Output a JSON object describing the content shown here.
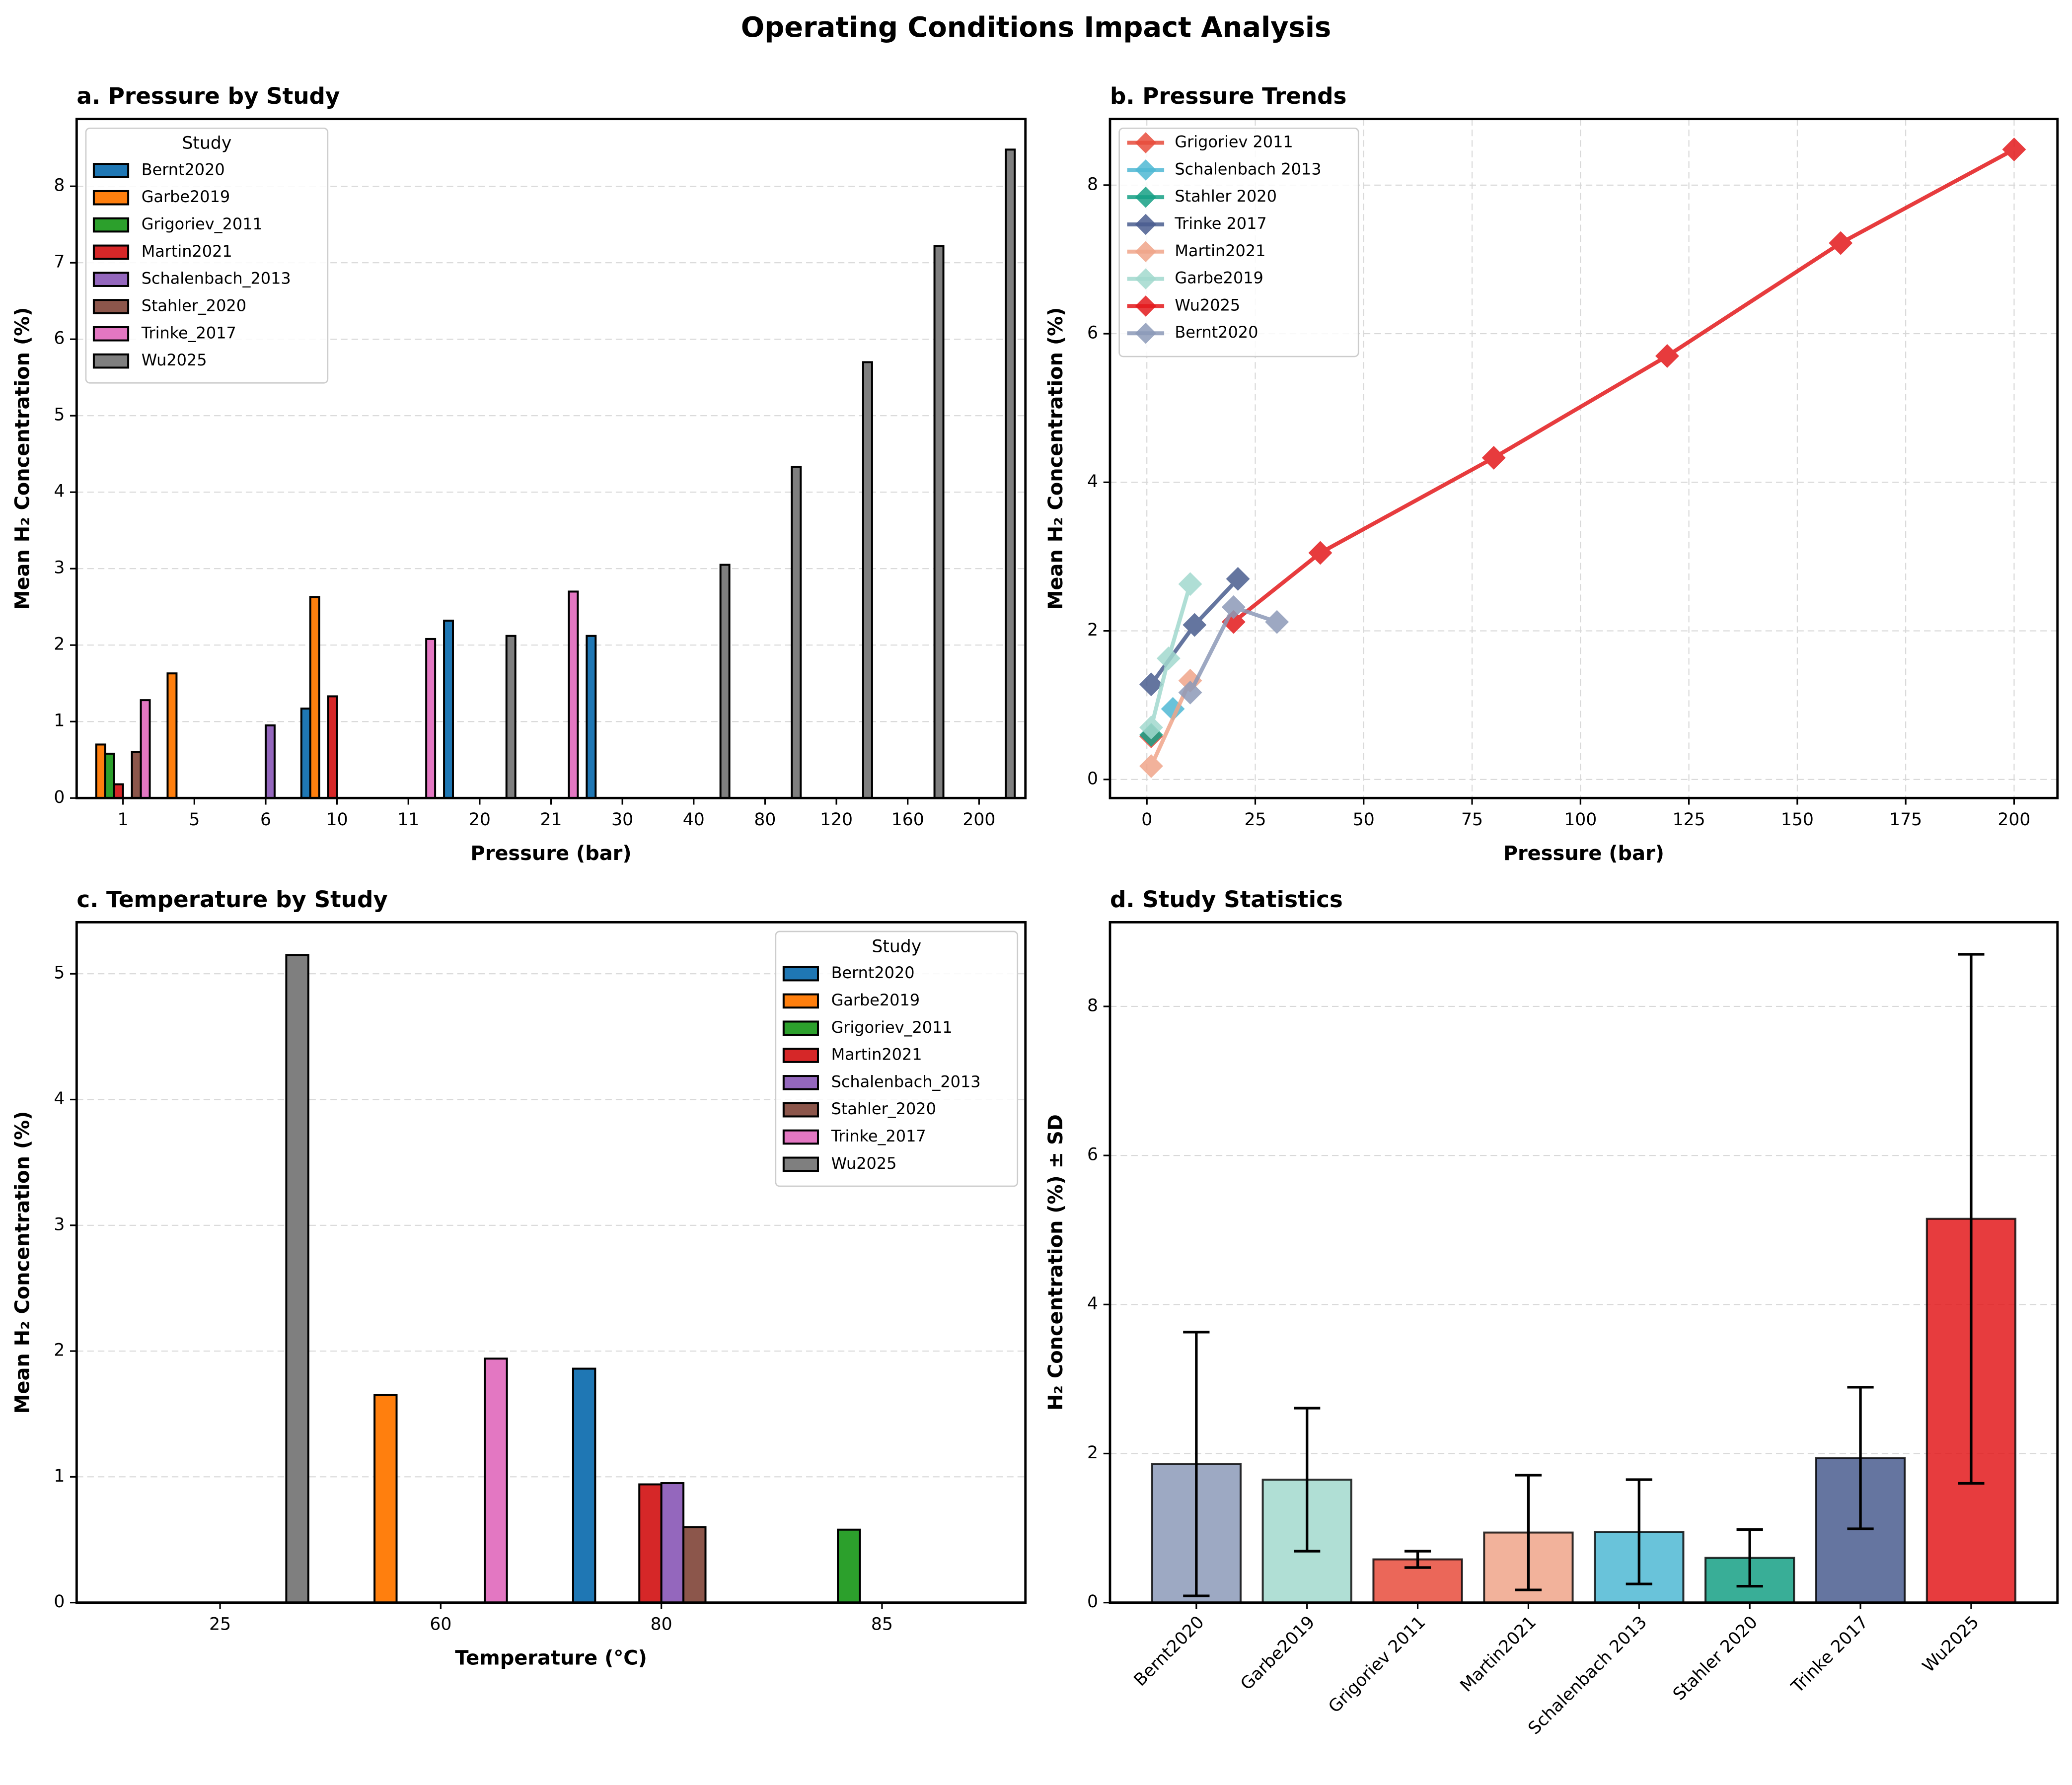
{
  "title": "Operating Conditions Impact Analysis",
  "chart_data": [
    {
      "type": "bar",
      "title": "a. Pressure by Study",
      "xlabel": "Pressure (bar)",
      "ylabel": "Mean H₂ Concentration (%)",
      "categories": [
        1,
        5,
        6,
        10,
        11,
        20,
        21,
        30,
        40,
        80,
        120,
        160,
        200
      ],
      "series": [
        {
          "name": "Bernt2020",
          "color": "#1f77b4",
          "values": [
            null,
            null,
            null,
            1.17,
            null,
            2.32,
            null,
            2.12,
            null,
            null,
            null,
            null,
            null
          ]
        },
        {
          "name": "Garbe2019",
          "color": "#ff7f0e",
          "values": [
            0.7,
            1.63,
            null,
            2.63,
            null,
            null,
            null,
            null,
            null,
            null,
            null,
            null,
            null
          ]
        },
        {
          "name": "Grigoriev_2011",
          "color": "#2ca02c",
          "values": [
            0.58,
            null,
            null,
            null,
            null,
            null,
            null,
            null,
            null,
            null,
            null,
            null,
            null
          ]
        },
        {
          "name": "Martin2021",
          "color": "#d62728",
          "values": [
            0.18,
            null,
            null,
            1.33,
            null,
            null,
            null,
            null,
            null,
            null,
            null,
            null,
            null
          ]
        },
        {
          "name": "Schalenbach_2013",
          "color": "#9467bd",
          "values": [
            null,
            null,
            0.95,
            null,
            null,
            null,
            null,
            null,
            null,
            null,
            null,
            null,
            null
          ]
        },
        {
          "name": "Stahler_2020",
          "color": "#8c564b",
          "values": [
            0.6,
            null,
            null,
            null,
            null,
            null,
            null,
            null,
            null,
            null,
            null,
            null,
            null
          ]
        },
        {
          "name": "Trinke_2017",
          "color": "#e377c2",
          "values": [
            1.28,
            null,
            null,
            null,
            2.08,
            null,
            2.7,
            null,
            null,
            null,
            null,
            null,
            null
          ]
        },
        {
          "name": "Wu2025",
          "color": "#7f7f7f",
          "values": [
            null,
            null,
            null,
            null,
            null,
            2.12,
            null,
            null,
            3.05,
            4.33,
            5.7,
            7.22,
            8.48
          ]
        }
      ],
      "ylim": [
        0,
        8.88
      ],
      "yticks": [
        0,
        1,
        2,
        3,
        4,
        5,
        6,
        7,
        8
      ],
      "grid": "y",
      "legend": "upper left",
      "legend_title": "Study"
    },
    {
      "type": "line",
      "title": "b. Pressure Trends",
      "xlabel": "Pressure (bar)",
      "ylabel": "Mean H₂ Concentration (%)",
      "series": [
        {
          "name": "Grigoriev 2011",
          "color": "#e74c3c",
          "x": [
            1
          ],
          "values": [
            0.58
          ]
        },
        {
          "name": "Schalenbach 2013",
          "color": "#4fb8d4",
          "x": [
            6
          ],
          "values": [
            0.95
          ]
        },
        {
          "name": "Stahler 2020",
          "color": "#16a085",
          "x": [
            1
          ],
          "values": [
            0.6
          ]
        },
        {
          "name": "Trinke 2017",
          "color": "#4a5d8f",
          "x": [
            1,
            11,
            21
          ],
          "values": [
            1.28,
            2.08,
            2.7
          ]
        },
        {
          "name": "Martin2021",
          "color": "#f0a58a",
          "x": [
            1,
            10
          ],
          "values": [
            0.18,
            1.33
          ]
        },
        {
          "name": "Garbe2019",
          "color": "#a2d9ce",
          "x": [
            1,
            5,
            10
          ],
          "values": [
            0.7,
            1.63,
            2.63
          ]
        },
        {
          "name": "Wu2025",
          "color": "#e31a1c",
          "x": [
            20,
            40,
            80,
            120,
            160,
            200
          ],
          "values": [
            2.12,
            3.05,
            4.33,
            5.7,
            7.22,
            8.48
          ]
        },
        {
          "name": "Bernt2020",
          "color": "#8c9ab8",
          "x": [
            10,
            20,
            30
          ],
          "values": [
            1.17,
            2.32,
            2.12
          ]
        }
      ],
      "xlim": [
        -8.5,
        210
      ],
      "xticks": [
        0,
        25,
        50,
        75,
        100,
        125,
        150,
        175,
        200
      ],
      "ylim": [
        -0.25,
        8.89
      ],
      "yticks": [
        0,
        2,
        4,
        6,
        8
      ],
      "grid": "both",
      "legend": "upper left"
    },
    {
      "type": "bar",
      "title": "c. Temperature by Study",
      "xlabel": "Temperature (°C)",
      "ylabel": "Mean H₂ Concentration (%)",
      "categories": [
        25,
        60,
        80,
        85
      ],
      "series": [
        {
          "name": "Bernt2020",
          "color": "#1f77b4",
          "values": [
            null,
            null,
            1.86,
            null
          ]
        },
        {
          "name": "Garbe2019",
          "color": "#ff7f0e",
          "values": [
            null,
            1.65,
            null,
            null
          ]
        },
        {
          "name": "Grigoriev_2011",
          "color": "#2ca02c",
          "values": [
            null,
            null,
            null,
            0.58
          ]
        },
        {
          "name": "Martin2021",
          "color": "#d62728",
          "values": [
            null,
            null,
            0.94,
            null
          ]
        },
        {
          "name": "Schalenbach_2013",
          "color": "#9467bd",
          "values": [
            null,
            null,
            0.95,
            null
          ]
        },
        {
          "name": "Stahler_2020",
          "color": "#8c564b",
          "values": [
            null,
            null,
            0.6,
            null
          ]
        },
        {
          "name": "Trinke_2017",
          "color": "#e377c2",
          "values": [
            null,
            1.94,
            null,
            null
          ]
        },
        {
          "name": "Wu2025",
          "color": "#7f7f7f",
          "values": [
            5.15,
            null,
            null,
            null
          ]
        }
      ],
      "ylim": [
        0,
        5.41
      ],
      "yticks": [
        0,
        1,
        2,
        3,
        4,
        5
      ],
      "grid": "y",
      "legend": "upper right",
      "legend_title": "Study"
    },
    {
      "type": "bar",
      "title": "d. Study Statistics",
      "ylabel": "H₂ Concentration (%) ± SD",
      "categories": [
        "Bernt2020",
        "Garbe2019",
        "Grigoriev 2011",
        "Martin2021",
        "Schalenbach 2013",
        "Stahler 2020",
        "Trinke 2017",
        "Wu2025"
      ],
      "values": [
        1.86,
        1.65,
        0.58,
        0.94,
        0.95,
        0.6,
        1.94,
        5.15
      ],
      "errors": [
        1.77,
        0.96,
        0.11,
        0.77,
        0.7,
        0.38,
        0.95,
        3.55
      ],
      "colors": [
        "#8c9ab8",
        "#a2d9ce",
        "#e74c3c",
        "#f0a58a",
        "#4fb8d4",
        "#16a085",
        "#4a5d8f",
        "#e31a1c"
      ],
      "ylim": [
        0,
        9.13
      ],
      "yticks": [
        0,
        2,
        4,
        6,
        8
      ],
      "grid": "y",
      "xtick_rotation": 45
    }
  ]
}
